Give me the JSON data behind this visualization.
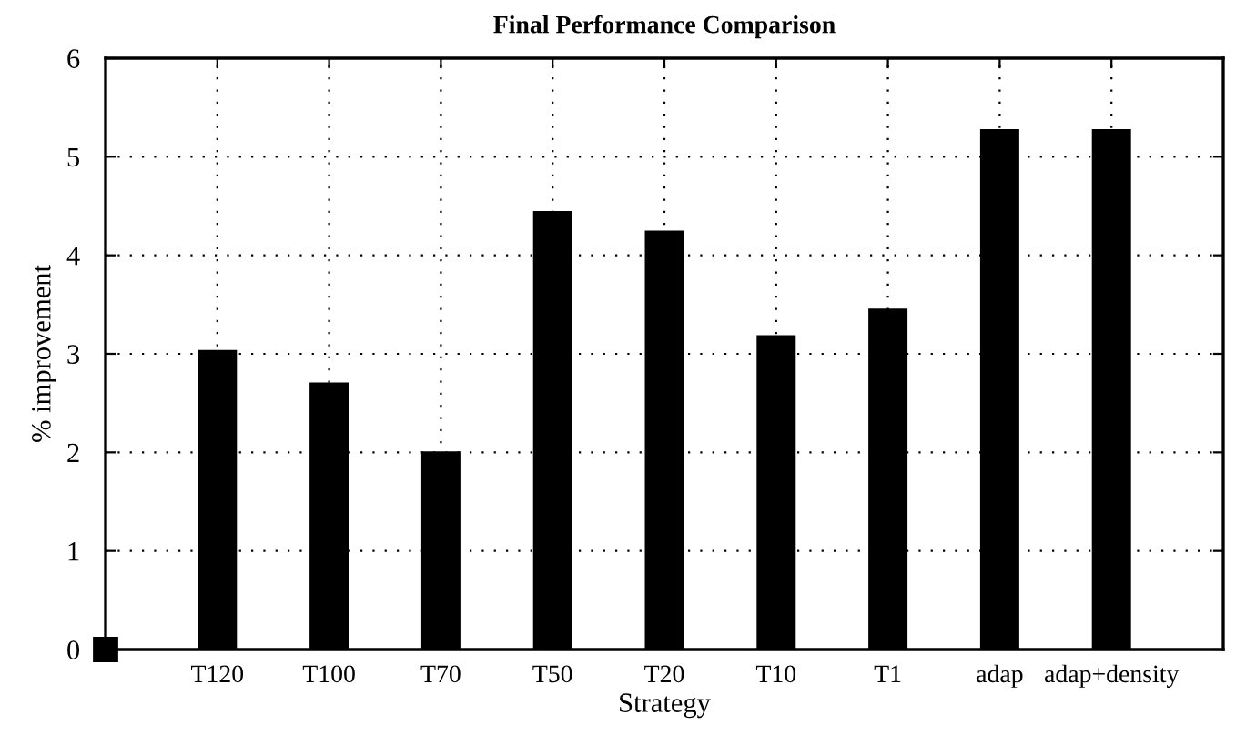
{
  "chart_data": {
    "type": "bar",
    "title": "Final Performance Comparison",
    "xlabel": "Strategy",
    "ylabel": "% improvement",
    "categories": [
      "T120",
      "T100",
      "T70",
      "T50",
      "T20",
      "T10",
      "T1",
      "adap",
      "adap+density"
    ],
    "values": [
      3.04,
      2.71,
      2.01,
      4.45,
      4.25,
      3.19,
      3.46,
      5.28,
      5.28
    ],
    "color": "#000000",
    "ylim": [
      0,
      6
    ],
    "yticks": [
      0,
      1,
      2,
      3,
      4,
      5,
      6
    ],
    "grid": true,
    "legend": false
  }
}
